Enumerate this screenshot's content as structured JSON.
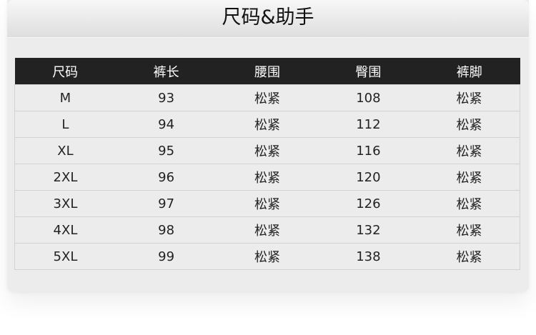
{
  "title": "尺码&助手",
  "table": {
    "headers": [
      "尺码",
      "裤长",
      "腰围",
      "臀围",
      "裤脚"
    ],
    "rows": [
      [
        "M",
        "93",
        "松紧",
        "108",
        "松紧"
      ],
      [
        "L",
        "94",
        "松紧",
        "112",
        "松紧"
      ],
      [
        "XL",
        "95",
        "松紧",
        "116",
        "松紧"
      ],
      [
        "2XL",
        "96",
        "松紧",
        "120",
        "松紧"
      ],
      [
        "3XL",
        "97",
        "松紧",
        "126",
        "松紧"
      ],
      [
        "4XL",
        "98",
        "松紧",
        "132",
        "松紧"
      ],
      [
        "5XL",
        "99",
        "松紧",
        "138",
        "松紧"
      ]
    ]
  }
}
